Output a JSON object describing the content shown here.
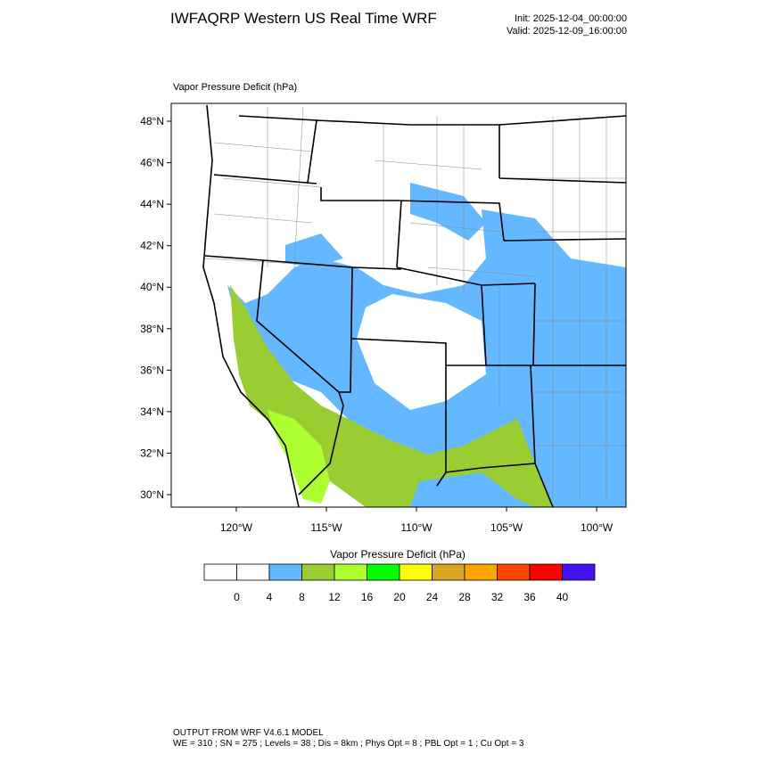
{
  "header": {
    "title": "IWFAQRP Western US Real Time WRF",
    "init": "Init: 2025-12-04_00:00:00",
    "valid": "Valid: 2025-12-09_16:00:00"
  },
  "map": {
    "field_title": "Vapor Pressure Deficit   (hPa)",
    "xlim": [
      -123.61,
      -98.37
    ],
    "ylim": [
      29.4,
      48.86
    ],
    "xticks": [
      {
        "value": -120,
        "label": "120°W"
      },
      {
        "value": -115,
        "label": "115°W"
      },
      {
        "value": -110,
        "label": "110°W"
      },
      {
        "value": -105,
        "label": "105°W"
      },
      {
        "value": -100,
        "label": "100°W"
      }
    ],
    "yticks": [
      {
        "value": 30,
        "label": "30°N"
      },
      {
        "value": 32,
        "label": "32°N"
      },
      {
        "value": 34,
        "label": "34°N"
      },
      {
        "value": 36,
        "label": "36°N"
      },
      {
        "value": 38,
        "label": "38°N"
      },
      {
        "value": 40,
        "label": "40°N"
      },
      {
        "value": 42,
        "label": "42°N"
      },
      {
        "value": 44,
        "label": "44°N"
      },
      {
        "value": 46,
        "label": "46°N"
      },
      {
        "value": 48,
        "label": "48°N"
      }
    ]
  },
  "colorbar": {
    "title": "Vapor Pressure Deficit  (hPa)",
    "levels": [
      0,
      4,
      8,
      12,
      16,
      20,
      24,
      28,
      32,
      36,
      40
    ],
    "colors": [
      "#ffffff",
      "#ffffff",
      "#63b8ff",
      "#9acd32",
      "#adff2f",
      "#00ff00",
      "#ffff00",
      "#daa520",
      "#ffa500",
      "#ff4500",
      "#ff0000",
      "#4412ee"
    ]
  },
  "footer": {
    "line1": "OUTPUT FROM WRF V4.6.1 MODEL",
    "line2": "WE = 310 ; SN = 275 ; Levels = 38 ; Dis = 8km ; Phys Opt = 8 ; PBL Opt = 1 ; Cu Opt = 3"
  }
}
